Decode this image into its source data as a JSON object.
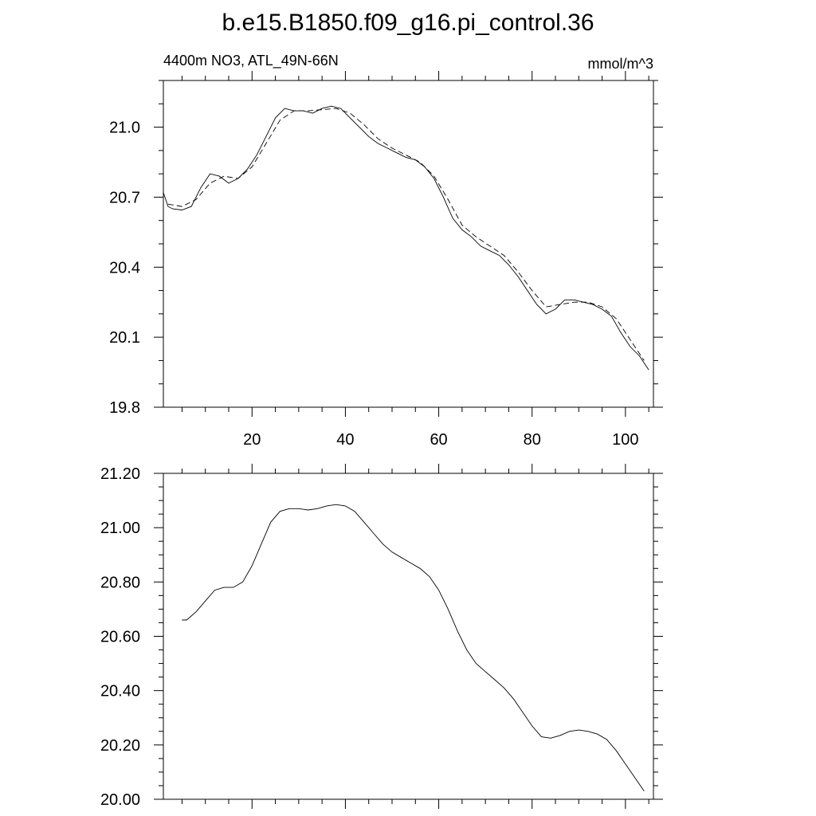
{
  "title": "b.e15.B1850.f09_g16.pi_control.36",
  "chart_data": [
    {
      "type": "line",
      "left_label": "4400m NO3, ATL_49N-66N",
      "right_label": "mmol/m^3",
      "xlim": [
        1,
        106
      ],
      "ylim": [
        19.8,
        21.2
      ],
      "x_ticks": [
        20,
        40,
        60,
        80,
        100
      ],
      "y_ticks": [
        "19.8",
        "20.1",
        "20.4",
        "20.7",
        "21.0"
      ],
      "series": [
        {
          "style": "solid",
          "x": [
            1,
            2,
            3,
            5,
            7,
            9,
            11,
            13,
            15,
            17,
            19,
            21,
            23,
            25,
            27,
            29,
            31,
            33,
            35,
            37,
            39,
            41,
            43,
            45,
            47,
            49,
            51,
            53,
            55,
            57,
            59,
            61,
            63,
            65,
            67,
            69,
            71,
            73,
            75,
            77,
            79,
            81,
            83,
            84,
            85,
            87,
            89,
            91,
            93,
            95,
            97,
            99,
            101,
            103,
            105
          ],
          "y": [
            20.72,
            20.66,
            20.65,
            20.645,
            20.66,
            20.74,
            20.8,
            20.79,
            20.76,
            20.78,
            20.82,
            20.88,
            20.96,
            21.04,
            21.08,
            21.07,
            21.07,
            21.06,
            21.08,
            21.09,
            21.08,
            21.04,
            21.0,
            20.96,
            20.93,
            20.91,
            20.89,
            20.87,
            20.86,
            20.83,
            20.78,
            20.7,
            20.61,
            20.56,
            20.53,
            20.49,
            20.47,
            20.45,
            20.41,
            20.36,
            20.3,
            20.24,
            20.2,
            20.21,
            20.22,
            20.26,
            20.26,
            20.25,
            20.24,
            20.22,
            20.19,
            20.12,
            20.06,
            20.02,
            19.96
          ]
        },
        {
          "style": "dashed",
          "x": [
            2,
            5,
            8,
            11,
            14,
            17,
            20,
            23,
            26,
            29,
            32,
            35,
            38,
            41,
            44,
            47,
            50,
            53,
            56,
            59,
            62,
            65,
            68,
            71,
            74,
            77,
            80,
            83,
            86,
            89,
            92,
            95,
            98,
            101,
            104
          ],
          "y": [
            20.67,
            20.66,
            20.69,
            20.76,
            20.79,
            20.78,
            20.83,
            20.93,
            21.03,
            21.07,
            21.07,
            21.075,
            21.08,
            21.06,
            21.01,
            20.95,
            20.91,
            20.88,
            20.85,
            20.79,
            20.69,
            20.58,
            20.53,
            20.49,
            20.45,
            20.38,
            20.3,
            20.23,
            20.24,
            20.25,
            20.25,
            20.23,
            20.18,
            20.09,
            20.0
          ]
        }
      ]
    },
    {
      "type": "line",
      "xlim": [
        1,
        106
      ],
      "ylim": [
        20.0,
        21.2
      ],
      "y_ticks": [
        "20.00",
        "20.20",
        "20.40",
        "20.60",
        "20.80",
        "21.00",
        "21.20"
      ],
      "series": [
        {
          "style": "solid",
          "x": [
            5,
            6,
            8,
            10,
            12,
            14,
            16,
            18,
            20,
            22,
            24,
            26,
            28,
            30,
            32,
            34,
            36,
            38,
            40,
            42,
            44,
            46,
            48,
            50,
            52,
            54,
            56,
            58,
            60,
            62,
            64,
            66,
            68,
            70,
            72,
            74,
            76,
            78,
            80,
            82,
            84,
            86,
            88,
            90,
            92,
            94,
            96,
            98,
            100,
            102,
            104
          ],
          "y": [
            20.66,
            20.66,
            20.69,
            20.73,
            20.77,
            20.78,
            20.78,
            20.8,
            20.86,
            20.94,
            21.02,
            21.06,
            21.07,
            21.07,
            21.065,
            21.07,
            21.08,
            21.085,
            21.08,
            21.06,
            21.02,
            20.98,
            20.94,
            20.91,
            20.89,
            20.87,
            20.85,
            20.82,
            20.77,
            20.7,
            20.62,
            20.55,
            20.5,
            20.47,
            20.44,
            20.41,
            20.37,
            20.32,
            20.27,
            20.23,
            20.225,
            20.235,
            20.25,
            20.255,
            20.25,
            20.24,
            20.22,
            20.18,
            20.13,
            20.08,
            20.03
          ]
        }
      ]
    }
  ]
}
